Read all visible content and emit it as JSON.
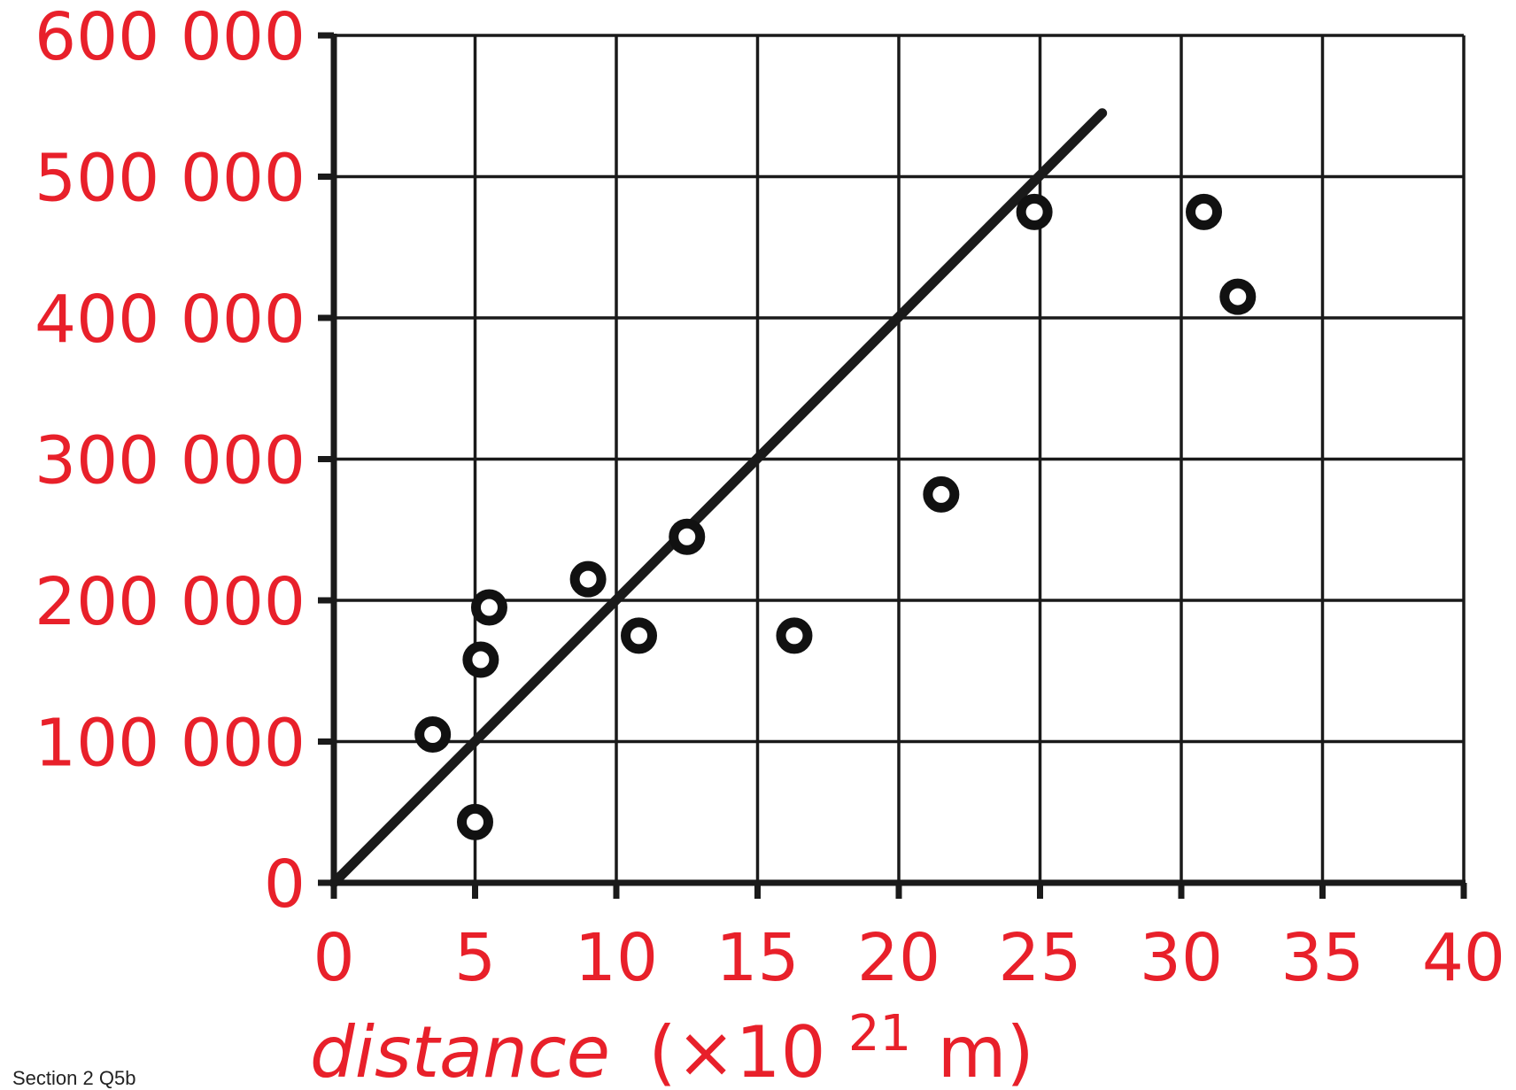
{
  "chart_data": {
    "type": "scatter",
    "xlabel": {
      "main": "distance",
      "rest": "(×10",
      "exponent": "21",
      "unit": "m)"
    },
    "ylabel": "",
    "xlim": [
      0,
      40
    ],
    "ylim": [
      0,
      600000
    ],
    "xticks": [
      0,
      5,
      10,
      15,
      20,
      25,
      30,
      35,
      40
    ],
    "xtick_labels": [
      "0",
      "5",
      "10",
      "15",
      "20",
      "25",
      "30",
      "35",
      "40"
    ],
    "yticks": [
      0,
      100000,
      200000,
      300000,
      400000,
      500000,
      600000
    ],
    "ytick_labels": [
      "0",
      "100 000",
      "200 000",
      "300 000",
      "400 000",
      "500 000",
      "600 000"
    ],
    "grid": true,
    "points": [
      {
        "x": 3.5,
        "y": 105000
      },
      {
        "x": 5.0,
        "y": 43000
      },
      {
        "x": 5.2,
        "y": 158000
      },
      {
        "x": 5.5,
        "y": 195000
      },
      {
        "x": 9.0,
        "y": 215000
      },
      {
        "x": 10.8,
        "y": 175000
      },
      {
        "x": 12.5,
        "y": 245000
      },
      {
        "x": 16.3,
        "y": 175000
      },
      {
        "x": 21.5,
        "y": 275000
      },
      {
        "x": 24.8,
        "y": 475000
      },
      {
        "x": 30.8,
        "y": 475000
      },
      {
        "x": 32.0,
        "y": 415000
      }
    ],
    "trendline": {
      "x": [
        0,
        27.2
      ],
      "y": [
        0,
        545000
      ]
    }
  },
  "footnote": "Section 2 Q5b"
}
